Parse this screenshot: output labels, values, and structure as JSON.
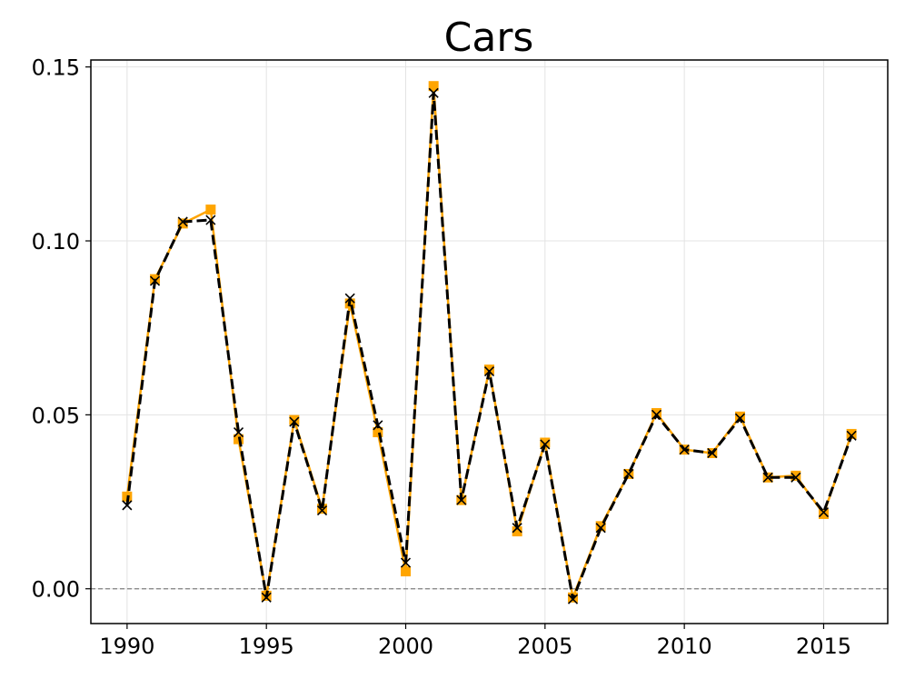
{
  "chart_data": {
    "type": "line",
    "title": "Cars",
    "xlabel": "",
    "ylabel": "",
    "xlim": [
      1988.7,
      2017.3
    ],
    "ylim": [
      -0.01,
      0.152
    ],
    "x_ticks": [
      "1990",
      "1995",
      "2000",
      "2005",
      "2010",
      "2015"
    ],
    "y_ticks": [
      "0.00",
      "0.05",
      "0.10",
      "0.15"
    ],
    "grid": true,
    "legend": "none",
    "reference_line": {
      "y": 0.0,
      "style": "dashed",
      "color": "#808080"
    },
    "x": [
      1990,
      1991,
      1992,
      1993,
      1994,
      1995,
      1996,
      1997,
      1998,
      1999,
      2000,
      2001,
      2002,
      2003,
      2004,
      2005,
      2006,
      2007,
      2008,
      2009,
      2010,
      2011,
      2012,
      2013,
      2014,
      2015,
      2016
    ],
    "series": [
      {
        "style": "solid-square",
        "color": "#FFA500",
        "values": [
          0.0265,
          0.089,
          0.105,
          0.109,
          0.043,
          -0.002,
          0.0485,
          0.023,
          0.082,
          0.045,
          0.005,
          0.1445,
          0.0255,
          0.063,
          0.0165,
          0.042,
          -0.0025,
          0.018,
          0.033,
          0.0505,
          0.04,
          0.039,
          0.0495,
          0.032,
          0.0325,
          0.0215,
          0.0445
        ]
      },
      {
        "style": "dashed-x",
        "color": "#000000",
        "values": [
          0.024,
          0.0885,
          0.1055,
          0.106,
          0.045,
          -0.0025,
          0.048,
          0.0225,
          0.0835,
          0.047,
          0.0075,
          0.1425,
          0.0255,
          0.0625,
          0.0175,
          0.0415,
          -0.003,
          0.0175,
          0.033,
          0.05,
          0.04,
          0.039,
          0.049,
          0.032,
          0.032,
          0.022,
          0.044
        ]
      }
    ]
  }
}
